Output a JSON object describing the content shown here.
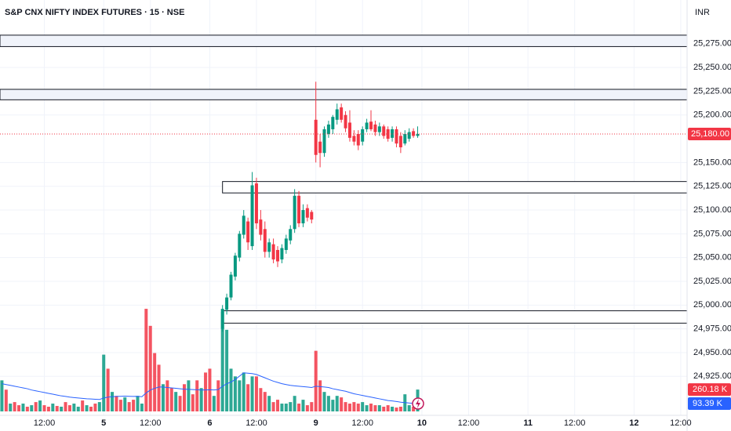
{
  "chart_data": {
    "type": "candlestick",
    "title": "S&P CNX NIFTY INDEX FUTURES · 15 · NSE",
    "currency": "INR",
    "xlim": [
      0.555,
      162.5
    ],
    "xticks": [
      {
        "value": 11,
        "label": "12:00"
      },
      {
        "value": 25,
        "label": "5"
      },
      {
        "value": 36,
        "label": "12:00"
      },
      {
        "value": 50,
        "label": "6"
      },
      {
        "value": 61,
        "label": "12:00"
      },
      {
        "value": 75,
        "label": "9"
      },
      {
        "value": 86,
        "label": "12:00"
      },
      {
        "value": 100,
        "label": "10"
      },
      {
        "value": 111,
        "label": "12:00"
      },
      {
        "value": 125,
        "label": "11"
      },
      {
        "value": 136,
        "label": "12:00"
      },
      {
        "value": 150,
        "label": "12"
      },
      {
        "value": 161,
        "label": "12:00"
      }
    ],
    "ylim": [
      24884,
      25321
    ],
    "yticks": [
      {
        "value": 24925,
        "label": "24,925.00"
      },
      {
        "value": 24950,
        "label": "24,950.00"
      },
      {
        "value": 24975,
        "label": "24,975.00"
      },
      {
        "value": 25000,
        "label": "25,000.00"
      },
      {
        "value": 25025,
        "label": "25,025.00"
      },
      {
        "value": 25050,
        "label": "25,050.00"
      },
      {
        "value": 25075,
        "label": "25,075.00"
      },
      {
        "value": 25100,
        "label": "25,100.00"
      },
      {
        "value": 25125,
        "label": "25,125.00"
      },
      {
        "value": 25150,
        "label": "25,150.00"
      },
      {
        "value": 25200,
        "label": "25,200.00"
      },
      {
        "value": 25225,
        "label": "25,225.00"
      },
      {
        "value": 25250,
        "label": "25,250.00"
      },
      {
        "value": 25275,
        "label": "25,275.00"
      }
    ],
    "grid": true,
    "up_color": "#089981",
    "down_color": "#f23645",
    "candles": {
      "x": [
        53,
        54,
        55,
        56,
        57,
        58,
        59,
        60,
        61,
        62,
        63,
        64,
        65,
        66,
        67,
        68,
        69,
        70,
        71,
        72,
        73,
        74,
        75,
        76,
        77,
        78,
        79,
        80,
        81,
        82,
        83,
        84,
        85,
        86,
        87,
        88,
        89,
        90,
        91,
        92,
        93,
        94,
        95,
        96,
        97,
        98,
        99
      ],
      "open": [
        24975,
        24995,
        25008,
        25030,
        25050,
        25074,
        25088,
        25062,
        25128,
        25090,
        25080,
        25056,
        25064,
        25058,
        25048,
        25058,
        25068,
        25080,
        25115,
        25086,
        25102,
        25098,
        25195,
        25172,
        25160,
        25180,
        25185,
        25195,
        25208,
        25200,
        25192,
        25178,
        25180,
        25172,
        25185,
        25193,
        25190,
        25182,
        25188,
        25185,
        25176,
        25185,
        25178,
        25170,
        25175,
        25183,
        25178
      ],
      "high": [
        25000,
        25012,
        25035,
        25055,
        25078,
        25100,
        25092,
        25140,
        25134,
        25100,
        25088,
        25070,
        25070,
        25062,
        25064,
        25074,
        25084,
        25122,
        25120,
        25106,
        25106,
        25100,
        25235,
        25180,
        25188,
        25194,
        25200,
        25212,
        25212,
        25204,
        25205,
        25184,
        25184,
        25188,
        25196,
        25205,
        25194,
        25192,
        25190,
        25188,
        25188,
        25188,
        25182,
        25184,
        25186,
        25186,
        25188
      ],
      "low": [
        24972,
        24990,
        25005,
        25026,
        25046,
        25070,
        25058,
        25058,
        25080,
        25068,
        25050,
        25050,
        25044,
        25040,
        25044,
        25054,
        25064,
        25076,
        25082,
        25082,
        25088,
        25086,
        25150,
        25145,
        25156,
        25176,
        25180,
        25190,
        25192,
        25182,
        25172,
        25168,
        25163,
        25168,
        25182,
        25183,
        25178,
        25178,
        25175,
        25172,
        25172,
        25166,
        25160,
        25168,
        25172,
        25176,
        25176
      ],
      "close": [
        24996,
        25008,
        25032,
        25052,
        25075,
        25094,
        25066,
        25126,
        25086,
        25074,
        25056,
        25066,
        25048,
        25046,
        25060,
        25070,
        25080,
        25115,
        25086,
        25100,
        25092,
        25090,
        25158,
        25160,
        25185,
        25190,
        25198,
        25206,
        25195,
        25186,
        25176,
        25172,
        25168,
        25185,
        25192,
        25185,
        25182,
        25188,
        25178,
        25175,
        25185,
        25170,
        25166,
        25180,
        25182,
        25178,
        25180
      ],
      "last_label": "25,180.00",
      "last_color": "#f23645"
    },
    "zones": [
      {
        "from": 0,
        "top": 25284,
        "bottom": 25272,
        "fill": "#f0f3fa"
      },
      {
        "from": 0,
        "top": 25227,
        "bottom": 25216,
        "fill": "#f0f3fa"
      },
      {
        "from": 53,
        "top": 25130,
        "bottom": 25118,
        "fill": "#ffffff"
      },
      {
        "from": 53,
        "top": 24994,
        "bottom": 24981,
        "fill": "#ffffff"
      }
    ],
    "volume": {
      "ylim": [
        0,
        4900
      ],
      "x": [
        1,
        2,
        3,
        4,
        5,
        6,
        7,
        8,
        9,
        10,
        11,
        12,
        13,
        14,
        15,
        16,
        17,
        18,
        19,
        20,
        21,
        22,
        23,
        24,
        25,
        26,
        27,
        28,
        29,
        30,
        31,
        32,
        33,
        34,
        35,
        36,
        37,
        38,
        39,
        40,
        41,
        42,
        43,
        44,
        45,
        46,
        47,
        48,
        49,
        50,
        51,
        52,
        53,
        54,
        55,
        56,
        57,
        58,
        59,
        60,
        61,
        62,
        63,
        64,
        65,
        66,
        67,
        68,
        69,
        70,
        71,
        72,
        73,
        74,
        75,
        76,
        77,
        78,
        79,
        80,
        81,
        82,
        83,
        84,
        85,
        86,
        87,
        88,
        89,
        90,
        91,
        92,
        93,
        94,
        95,
        96,
        97,
        98,
        99
      ],
      "values": [
        370,
        259,
        93,
        111,
        74,
        93,
        56,
        74,
        111,
        130,
        74,
        56,
        93,
        65,
        56,
        111,
        74,
        93,
        56,
        130,
        74,
        56,
        93,
        111,
        676,
        509,
        232,
        185,
        139,
        167,
        111,
        139,
        185,
        93,
        1222,
        1019,
        695,
        556,
        324,
        370,
        278,
        232,
        185,
        324,
        370,
        204,
        370,
        278,
        463,
        509,
        185,
        370,
        1185,
        972,
        509,
        417,
        370,
        463,
        324,
        417,
        417,
        278,
        232,
        185,
        111,
        139,
        93,
        93,
        111,
        185,
        93,
        139,
        74,
        111,
        722,
        370,
        232,
        185,
        139,
        185,
        167,
        111,
        93,
        111,
        93,
        111,
        74,
        93,
        74,
        74,
        56,
        74,
        56,
        46,
        56,
        204,
        74,
        56,
        260.18
      ],
      "up": [
        1,
        0,
        1,
        0,
        0,
        1,
        0,
        1,
        0,
        1,
        0,
        0,
        1,
        0,
        1,
        0,
        0,
        1,
        1,
        0,
        1,
        0,
        0,
        1,
        1,
        0,
        1,
        0,
        0,
        1,
        0,
        0,
        1,
        1,
        0,
        0,
        0,
        0,
        1,
        0,
        0,
        1,
        0,
        0,
        1,
        0,
        0,
        1,
        0,
        0,
        1,
        0,
        1,
        1,
        1,
        1,
        1,
        1,
        0,
        1,
        0,
        0,
        0,
        1,
        0,
        0,
        1,
        1,
        1,
        1,
        0,
        1,
        0,
        0,
        0,
        0,
        1,
        1,
        1,
        1,
        0,
        0,
        0,
        0,
        0,
        1,
        1,
        0,
        0,
        1,
        0,
        0,
        1,
        0,
        0,
        1,
        1,
        0,
        1
      ],
      "last_label": "260.18 K",
      "last_color": "#f23645",
      "ma": {
        "color": "#2962ff",
        "values": [
          330,
          320,
          310,
          300,
          290,
          280,
          270,
          255,
          245,
          235,
          225,
          215,
          205,
          195,
          185,
          178,
          170,
          165,
          160,
          155,
          150,
          148,
          145,
          142,
          160,
          170,
          175,
          178,
          180,
          182,
          180,
          178,
          180,
          175,
          220,
          255,
          275,
          290,
          290,
          285,
          280,
          275,
          270,
          265,
          262,
          260,
          258,
          255,
          255,
          258,
          255,
          260,
          300,
          330,
          350,
          380,
          420,
          460,
          455,
          450,
          440,
          420,
          400,
          380,
          360,
          345,
          330,
          320,
          310,
          305,
          300,
          295,
          290,
          285,
          300,
          295,
          290,
          285,
          270,
          260,
          250,
          240,
          225,
          210,
          200,
          190,
          180,
          170,
          160,
          150,
          140,
          130,
          125,
          118,
          110,
          105,
          100,
          96,
          93.39
        ],
        "last_label": "93.39 K"
      }
    }
  }
}
